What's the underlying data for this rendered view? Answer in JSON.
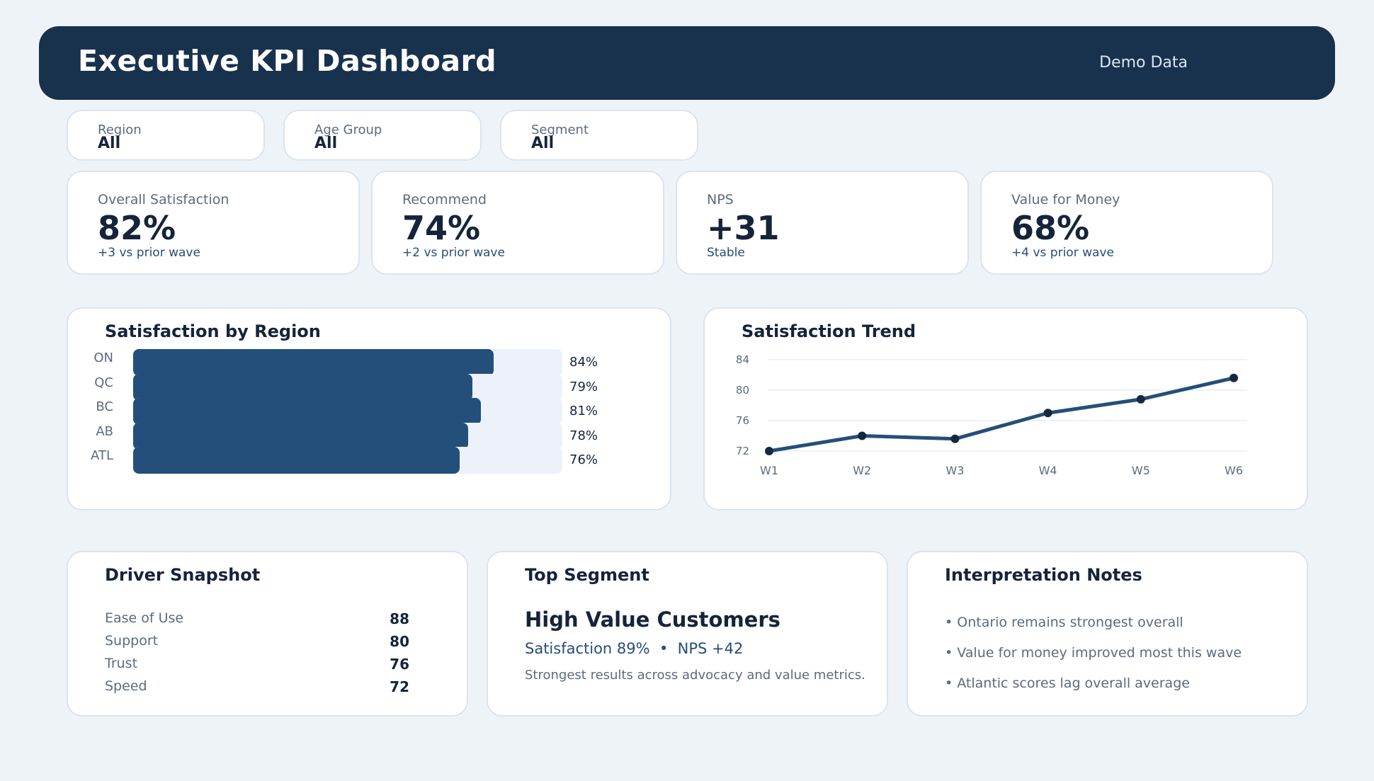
{
  "header": {
    "title": "Executive KPI Dashboard",
    "tag": "Demo Data"
  },
  "filters": [
    {
      "label": "Region",
      "value": "All"
    },
    {
      "label": "Age Group",
      "value": "All"
    },
    {
      "label": "Segment",
      "value": "All"
    }
  ],
  "kpis": [
    {
      "label": "Overall Satisfaction",
      "value": "82%",
      "sub": "+3 vs prior wave"
    },
    {
      "label": "Recommend",
      "value": "74%",
      "sub": "+2 vs prior wave"
    },
    {
      "label": "NPS",
      "value": "+31",
      "sub": "Stable"
    },
    {
      "label": "Value for Money",
      "value": "68%",
      "sub": "+4 vs prior wave"
    }
  ],
  "region_panel": {
    "title": "Satisfaction by Region"
  },
  "trend_panel": {
    "title": "Satisfaction Trend"
  },
  "chart_data": [
    {
      "type": "bar",
      "orientation": "horizontal",
      "title": "Satisfaction by Region",
      "categories": [
        "ON",
        "QC",
        "BC",
        "AB",
        "ATL"
      ],
      "values": [
        84,
        79,
        81,
        78,
        76
      ],
      "data_labels": [
        "84%",
        "79%",
        "81%",
        "78%",
        "76%"
      ],
      "xlim": [
        0,
        100
      ],
      "color": "#234f7a",
      "track_color": "#edf2fa"
    },
    {
      "type": "line",
      "title": "Satisfaction Trend",
      "x": [
        "W1",
        "W2",
        "W3",
        "W4",
        "W5",
        "W6"
      ],
      "series": [
        {
          "values": [
            72,
            74,
            73.6,
            77,
            78.8,
            81.6
          ]
        }
      ],
      "yticks": [
        72,
        76,
        80,
        84
      ],
      "ylim": [
        72,
        84
      ],
      "grid": true,
      "color": "#244f78",
      "marker_color": "#15283d"
    }
  ],
  "drivers": {
    "title": "Driver Snapshot",
    "items": [
      {
        "name": "Ease of Use",
        "value": "88"
      },
      {
        "name": "Support",
        "value": "80"
      },
      {
        "name": "Trust",
        "value": "76"
      },
      {
        "name": "Speed",
        "value": "72"
      }
    ]
  },
  "top_segment": {
    "title": "Top Segment",
    "name": "High Value Customers",
    "stats": "Satisfaction 89%  •  NPS +42",
    "description": "Strongest results across advocacy and value metrics."
  },
  "notes": {
    "title": "Interpretation Notes",
    "items": [
      "• Ontario remains strongest overall",
      "• Value for money improved most this wave",
      "• Atlantic scores lag overall average"
    ]
  },
  "colors": {
    "background": "#eef3f8",
    "header": "#18324e",
    "accent": "#234f7a",
    "text": "#15243a",
    "muted": "#5b6b7e"
  }
}
